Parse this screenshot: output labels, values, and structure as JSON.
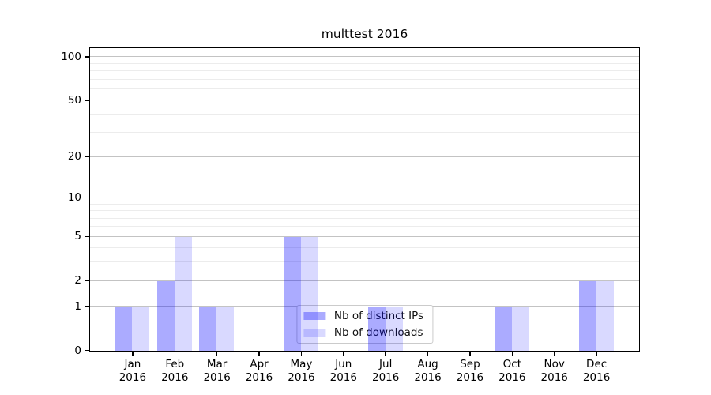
{
  "chart_data": {
    "type": "bar",
    "title": "multtest 2016",
    "categories": [
      "Jan",
      "Feb",
      "Mar",
      "Apr",
      "May",
      "Jun",
      "Jul",
      "Aug",
      "Sep",
      "Oct",
      "Nov",
      "Dec"
    ],
    "category_year": "2016",
    "series": [
      {
        "name": "Nb of distinct IPs",
        "color": "rgba(0,0,255,0.33)",
        "values": [
          1,
          2,
          1,
          0,
          5,
          0,
          1,
          0,
          0,
          1,
          0,
          2
        ]
      },
      {
        "name": "Nb of downloads",
        "color": "rgba(0,0,255,0.15)",
        "values": [
          1,
          5,
          1,
          0,
          5,
          0,
          1,
          0,
          0,
          1,
          0,
          2
        ]
      }
    ],
    "xlabel": "",
    "ylabel": "",
    "yaxis": {
      "scale": "log1p",
      "ylim": [
        0,
        114
      ],
      "major_ticks": [
        0,
        1,
        2,
        5,
        10,
        20,
        50,
        100
      ],
      "minor_gridlines": [
        3,
        4,
        6,
        7,
        8,
        9,
        30,
        40,
        60,
        70,
        80,
        90
      ]
    },
    "grid": true,
    "legend_position": "bottom-center",
    "colors": {
      "major_gridline": "#c3c3c3",
      "minor_gridline": "#ececec",
      "axis": "#000000",
      "legend_border": "#cbcbcb",
      "legend_bg": "#ffffff",
      "text": "#000000"
    }
  }
}
